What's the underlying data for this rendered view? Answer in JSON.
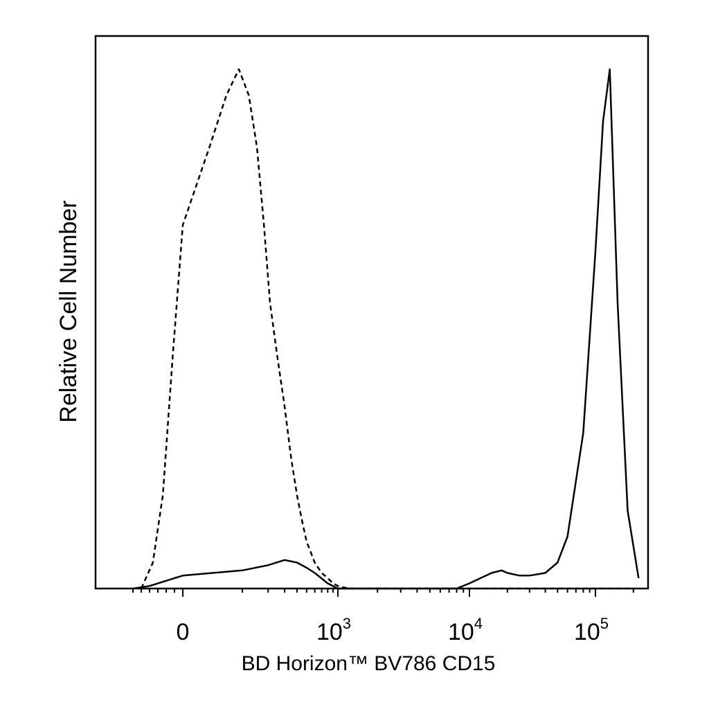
{
  "chart_data": {
    "type": "line",
    "title": "",
    "xlabel": "BD Horizon™ BV786 CD15",
    "ylabel": "Relative Cell Number",
    "x_scale": "biexponential",
    "y_scale": "linear",
    "y_range": [
      0,
      1
    ],
    "x_range": [
      -300,
      250000
    ],
    "grid": false,
    "legend": "none",
    "x_ticks": [
      {
        "value": 0,
        "label": "0"
      },
      {
        "value": 1000,
        "label": "10",
        "exponent": "3"
      },
      {
        "value": 10000,
        "label": "10",
        "exponent": "4"
      },
      {
        "value": 100000,
        "label": "10",
        "exponent": "5"
      }
    ],
    "series": [
      {
        "style": "dashed",
        "color": "#000000",
        "x": [
          -250,
          -180,
          -120,
          -60,
          0,
          30,
          60,
          90,
          120,
          150,
          180,
          210,
          250,
          300,
          350,
          400,
          450,
          500,
          600,
          700,
          800,
          900,
          1000,
          1200,
          1500,
          2000,
          3000,
          5000,
          10000,
          20000,
          50000,
          100000,
          200000
        ],
        "y": [
          0.0,
          0.05,
          0.18,
          0.45,
          0.7,
          0.85,
          0.95,
          1.0,
          0.95,
          0.85,
          0.7,
          0.55,
          0.45,
          0.35,
          0.25,
          0.18,
          0.13,
          0.09,
          0.05,
          0.03,
          0.02,
          0.01,
          0.005,
          0.0,
          0.0,
          0.0,
          0.0,
          0.0,
          0.0,
          0.0,
          0.0,
          0.0,
          0.0
        ]
      },
      {
        "style": "solid",
        "color": "#000000",
        "x": [
          -300,
          -200,
          -100,
          0,
          100,
          200,
          300,
          400,
          500,
          600,
          800,
          1000,
          1500,
          3000,
          8000,
          10000,
          15000,
          18000,
          20000,
          25000,
          30000,
          40000,
          50000,
          60000,
          80000,
          100000,
          115000,
          130000,
          150000,
          180000,
          220000
        ],
        "y": [
          0.0,
          0.005,
          0.015,
          0.025,
          0.035,
          0.045,
          0.055,
          0.05,
          0.04,
          0.03,
          0.01,
          0.0,
          0.0,
          0.0,
          0.0,
          0.01,
          0.03,
          0.035,
          0.03,
          0.025,
          0.025,
          0.03,
          0.05,
          0.1,
          0.3,
          0.65,
          0.9,
          1.0,
          0.55,
          0.15,
          0.02
        ]
      }
    ]
  }
}
